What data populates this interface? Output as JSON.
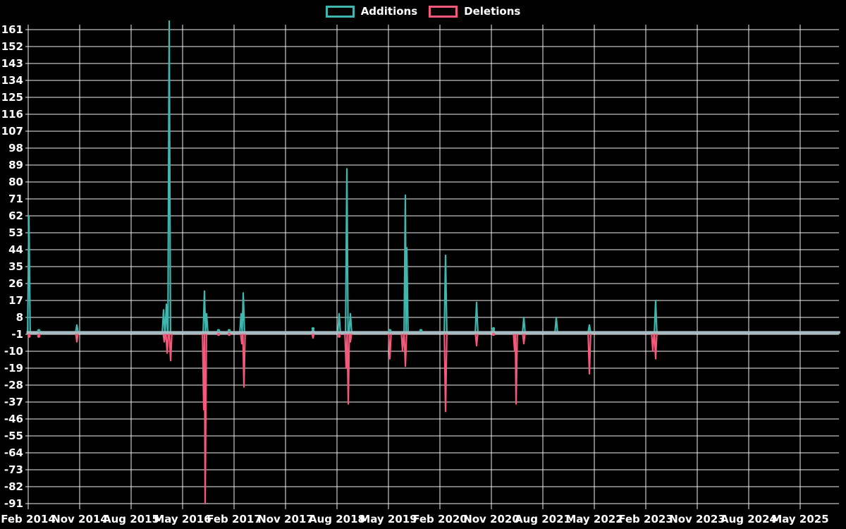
{
  "chart_data": {
    "type": "line",
    "title": "",
    "legend_items": [
      {
        "label": "Additions",
        "color": "#3fb6ae"
      },
      {
        "label": "Deletions",
        "color": "#f4597b"
      }
    ],
    "colors": {
      "background": "#000000",
      "grid": "#f0f0f0",
      "text": "#ffffff",
      "baseline": "#a9bfc6"
    },
    "ylim": [
      -91,
      161
    ],
    "y_tick_step": 9,
    "y_ticks": [
      161,
      152,
      143,
      134,
      125,
      116,
      107,
      98,
      89,
      80,
      71,
      62,
      53,
      44,
      35,
      26,
      17,
      8,
      -1,
      -10,
      -19,
      -28,
      -37,
      -46,
      -55,
      -64,
      -73,
      -82,
      -91
    ],
    "x_tick_labels": [
      "Feb 2014",
      "Nov 2014",
      "Aug 2015",
      "May 2016",
      "Feb 2017",
      "Nov 2017",
      "Aug 2018",
      "May 2019",
      "Feb 2020",
      "Nov 2020",
      "Aug 2021",
      "May 2022",
      "Feb 2023",
      "Nov 2023",
      "Aug 2024",
      "May 2025"
    ],
    "x_unit": "months since Feb 2014",
    "x_tick_step_months": 9,
    "x_total_months": 142,
    "baseline_value": 0,
    "grid": true,
    "legend_position": "top-center",
    "max_addition_spike_clipped_at_top": true,
    "series": [
      {
        "name": "Additions",
        "color": "#3fb6ae",
        "spikes": [
          [
            0.12,
            62
          ],
          [
            1.85,
            1
          ],
          [
            8.51,
            4
          ],
          [
            23.67,
            12
          ],
          [
            24.16,
            15
          ],
          [
            24.66,
            166
          ],
          [
            30.82,
            22
          ],
          [
            31.19,
            10
          ],
          [
            33.29,
            1
          ],
          [
            35.14,
            1
          ],
          [
            37.23,
            10
          ],
          [
            37.6,
            21
          ],
          [
            49.81,
            2
          ],
          [
            54.37,
            10
          ],
          [
            55.72,
            87
          ],
          [
            56.34,
            10
          ],
          [
            63.25,
            1
          ],
          [
            65.96,
            73
          ],
          [
            66.21,
            45
          ],
          [
            68.67,
            1
          ],
          [
            72.99,
            41
          ],
          [
            78.41,
            16
          ],
          [
            81.37,
            2
          ],
          [
            86.67,
            8
          ],
          [
            92.34,
            8
          ],
          [
            98.14,
            4
          ],
          [
            109.72,
            17
          ]
        ]
      },
      {
        "name": "Deletions",
        "color": "#f4597b",
        "spikes": [
          [
            0.15,
            -2
          ],
          [
            1.85,
            -2
          ],
          [
            8.51,
            -5
          ],
          [
            23.8,
            -5
          ],
          [
            24.3,
            -11
          ],
          [
            24.9,
            -15
          ],
          [
            30.7,
            -41
          ],
          [
            30.95,
            -91
          ],
          [
            33.29,
            -1
          ],
          [
            35.14,
            -1
          ],
          [
            37.35,
            -6
          ],
          [
            37.72,
            -29
          ],
          [
            49.81,
            -3
          ],
          [
            54.37,
            -2
          ],
          [
            55.6,
            -19
          ],
          [
            55.97,
            -38
          ],
          [
            56.34,
            -5
          ],
          [
            63.25,
            -14
          ],
          [
            65.47,
            -10
          ],
          [
            65.96,
            -18
          ],
          [
            72.99,
            -42
          ],
          [
            78.41,
            -7
          ],
          [
            81.37,
            -1
          ],
          [
            85.07,
            -10
          ],
          [
            85.32,
            -38
          ],
          [
            86.67,
            -6
          ],
          [
            98.14,
            -22
          ],
          [
            109.23,
            -10
          ],
          [
            109.72,
            -14
          ]
        ]
      }
    ]
  }
}
